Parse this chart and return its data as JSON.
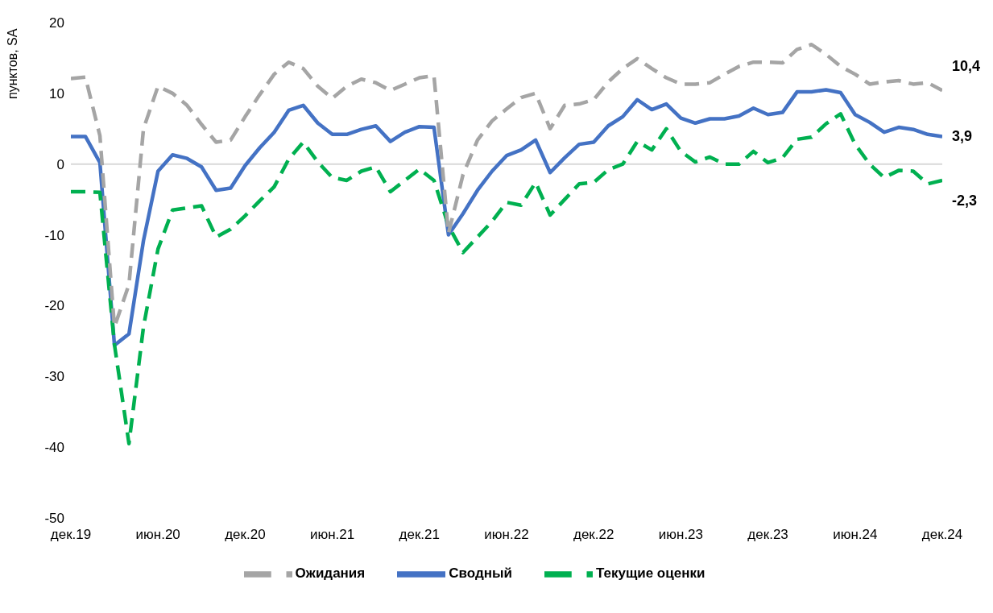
{
  "chart_data": {
    "type": "line",
    "ylabel": "пунктов, SA",
    "x": [
      "2019-12",
      "2020-01",
      "2020-02",
      "2020-03",
      "2020-04",
      "2020-05",
      "2020-06",
      "2020-07",
      "2020-08",
      "2020-09",
      "2020-10",
      "2020-11",
      "2020-12",
      "2021-01",
      "2021-02",
      "2021-03",
      "2021-04",
      "2021-05",
      "2021-06",
      "2021-07",
      "2021-08",
      "2021-09",
      "2021-10",
      "2021-11",
      "2021-12",
      "2022-01",
      "2022-02",
      "2022-03",
      "2022-04",
      "2022-05",
      "2022-06",
      "2022-07",
      "2022-08",
      "2022-09",
      "2022-10",
      "2022-11",
      "2022-12",
      "2023-01",
      "2023-02",
      "2023-03",
      "2023-04",
      "2023-05",
      "2023-06",
      "2023-07",
      "2023-08",
      "2023-09",
      "2023-10",
      "2023-11",
      "2023-12",
      "2024-01",
      "2024-02",
      "2024-03",
      "2024-04",
      "2024-05",
      "2024-06",
      "2024-07",
      "2024-08",
      "2024-09",
      "2024-10",
      "2024-11",
      "2024-12"
    ],
    "series": [
      {
        "name": "Сводный",
        "color": "#4472c4",
        "line_style": "solid",
        "values": [
          3.9,
          3.9,
          0.2,
          -25.6,
          -24,
          -10.8,
          -1,
          1.3,
          0.8,
          -0.4,
          -3.7,
          -3.4,
          -0.2,
          2.3,
          4.5,
          7.6,
          8.3,
          5.8,
          4.2,
          4.2,
          4.9,
          5.4,
          3.2,
          4.5,
          5.3,
          5.2,
          -10,
          -7,
          -3.7,
          -1,
          1.2,
          2,
          3.4,
          -1.2,
          0.9,
          2.8,
          3.1,
          5.4,
          6.7,
          9.1,
          7.7,
          8.5,
          6.5,
          5.8,
          6.4,
          6.4,
          6.8,
          7.9,
          7,
          7.3,
          10.2,
          10.2,
          10.5,
          10.1,
          7,
          5.9,
          4.5,
          5.2,
          4.9,
          4.2,
          3.9
        ],
        "value_labels": [
          null,
          null,
          null,
          null,
          null,
          null,
          null,
          null,
          null,
          null,
          null,
          null,
          null,
          null,
          null,
          null,
          null,
          null,
          null,
          null,
          null,
          null,
          null,
          null,
          null,
          null,
          null,
          null,
          null,
          null,
          null,
          null,
          null,
          null,
          null,
          null,
          null,
          null,
          null,
          null,
          null,
          null,
          null,
          null,
          null,
          null,
          null,
          null,
          null,
          null,
          null,
          null,
          null,
          null,
          null,
          null,
          null,
          null,
          null,
          null,
          "3,9"
        ]
      },
      {
        "name": "Текущие оценки",
        "color": "#00b050",
        "line_style": "dashed",
        "values": [
          -3.9,
          -3.9,
          -4,
          -25.5,
          -39.5,
          -23,
          -12,
          -6.5,
          -6.2,
          -5.9,
          -10.3,
          -9.2,
          -7.3,
          -5.2,
          -3.2,
          0.7,
          3.1,
          0.3,
          -1.9,
          -2.3,
          -1,
          -0.4,
          -3.9,
          -2.3,
          -0.7,
          -2.3,
          -8.7,
          -12.5,
          -10.3,
          -8.1,
          -5.4,
          -5.8,
          -2.6,
          -7.2,
          -5,
          -2.8,
          -2.6,
          -0.8,
          0,
          3.2,
          2,
          5,
          1.8,
          0.3,
          1,
          0,
          0,
          1.8,
          0.2,
          0.9,
          3.5,
          3.8,
          5.7,
          7.1,
          2.8,
          0,
          -1.9,
          -0.9,
          -1,
          -2.8,
          -2.3
        ],
        "value_labels": [
          null,
          null,
          null,
          null,
          null,
          null,
          null,
          null,
          null,
          null,
          null,
          null,
          null,
          null,
          null,
          null,
          null,
          null,
          null,
          null,
          null,
          null,
          null,
          null,
          null,
          null,
          null,
          null,
          null,
          null,
          null,
          null,
          null,
          null,
          null,
          null,
          null,
          null,
          null,
          null,
          null,
          null,
          null,
          null,
          null,
          null,
          null,
          null,
          null,
          null,
          null,
          null,
          null,
          null,
          null,
          null,
          null,
          null,
          null,
          null,
          "-2,3"
        ]
      },
      {
        "name": "Ожидания",
        "color": "#a5a5a5",
        "line_style": "dashed",
        "values": [
          12.1,
          12.3,
          4,
          -23,
          -17,
          5,
          11,
          10,
          8.3,
          5.6,
          3.1,
          3.4,
          6.7,
          9.8,
          12.7,
          14.4,
          13.5,
          11,
          9.3,
          11,
          12,
          11.5,
          10.4,
          11.3,
          12.2,
          12.5,
          -9.8,
          -1.5,
          3.4,
          6.1,
          7.8,
          9.4,
          10,
          5,
          8.3,
          8.5,
          9.1,
          11.6,
          13.5,
          14.9,
          13.5,
          12.2,
          11.3,
          11.3,
          11.5,
          12.7,
          13.8,
          14.4,
          14.4,
          14.3,
          16.2,
          16.9,
          15.5,
          13.8,
          12.7,
          11.3,
          11.6,
          11.8,
          11.3,
          11.5,
          10.4
        ],
        "value_labels": [
          null,
          null,
          null,
          null,
          null,
          null,
          null,
          null,
          null,
          null,
          null,
          null,
          null,
          null,
          null,
          null,
          null,
          null,
          null,
          null,
          null,
          null,
          null,
          null,
          null,
          null,
          null,
          null,
          null,
          null,
          null,
          null,
          null,
          null,
          null,
          null,
          null,
          null,
          null,
          null,
          null,
          null,
          null,
          null,
          null,
          null,
          null,
          null,
          null,
          null,
          null,
          null,
          null,
          null,
          null,
          null,
          null,
          null,
          null,
          null,
          "10,4"
        ]
      }
    ],
    "xlim": [
      "2019-12",
      "2024-12"
    ],
    "xticks": [
      {
        "value": "2019-12",
        "label": "дек.19"
      },
      {
        "value": "2020-06",
        "label": "июн.20"
      },
      {
        "value": "2020-12",
        "label": "дек.20"
      },
      {
        "value": "2021-06",
        "label": "июн.21"
      },
      {
        "value": "2021-12",
        "label": "дек.21"
      },
      {
        "value": "2022-06",
        "label": "июн.22"
      },
      {
        "value": "2022-12",
        "label": "дек.22"
      },
      {
        "value": "2023-06",
        "label": "июн.23"
      },
      {
        "value": "2023-12",
        "label": "дек.23"
      },
      {
        "value": "2024-06",
        "label": "июн.24"
      },
      {
        "value": "2024-12",
        "label": "дек.24"
      }
    ],
    "ylim": [
      -50,
      20
    ],
    "yticks": [
      -50,
      -40,
      -30,
      -20,
      -10,
      0,
      10,
      20
    ],
    "ref_lines": [
      {
        "axis": "y",
        "value": 0,
        "color": "#d9d9d9"
      }
    ],
    "grid": false,
    "legend": "bottom",
    "marker": "none"
  }
}
